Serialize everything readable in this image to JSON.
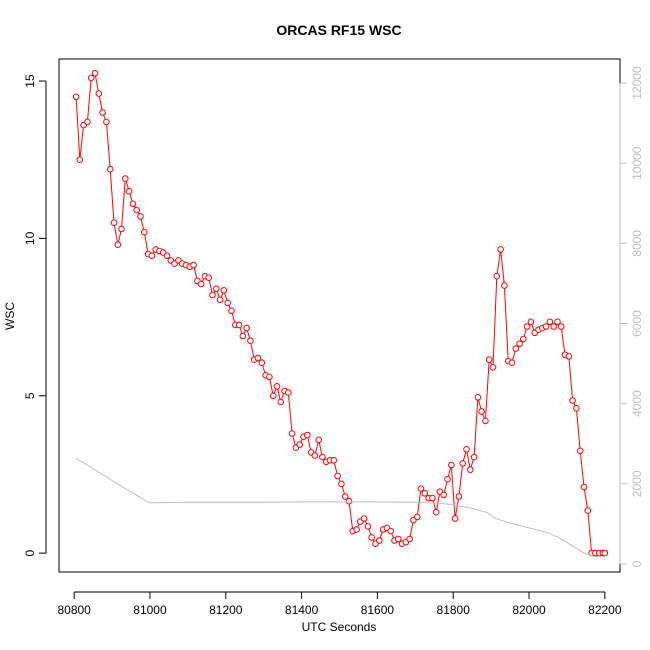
{
  "chart_data": {
    "type": "line",
    "title": "ORCAS RF15 WSC",
    "xlabel": "UTC Seconds",
    "ylabel": "WSC",
    "xlim": [
      80760,
      82240
    ],
    "ylim": [
      -0.6,
      15.7
    ],
    "y2lim": [
      -200,
      12600
    ],
    "x_ticks": [
      80800,
      81000,
      81200,
      81400,
      81600,
      81800,
      82000,
      82200
    ],
    "x_tick_labels": [
      "80800",
      "81000",
      "81200",
      "81400",
      "81600",
      "81800",
      "82000",
      "82200"
    ],
    "y_ticks": [
      0,
      5,
      10,
      15
    ],
    "y_tick_labels": [
      "0",
      "5",
      "10",
      "15"
    ],
    "y2_ticks": [
      0,
      2000,
      4000,
      6000,
      8000,
      10000,
      12000
    ],
    "y2_tick_labels": [
      "0",
      "2000",
      "4000",
      "6000",
      "8000",
      "10000",
      "12000"
    ],
    "grid": false,
    "colors": {
      "wsc": "#ff0000",
      "secondary": "#bebebe",
      "axis": "#000000",
      "axis2": "#bebebe"
    },
    "series": [
      {
        "axis": "left",
        "style": "line+markers",
        "points": [
          [
            80805,
            14.5
          ],
          [
            80815,
            12.5
          ],
          [
            80825,
            13.6
          ],
          [
            80835,
            13.7
          ],
          [
            80845,
            15.1
          ],
          [
            80855,
            15.25
          ],
          [
            80865,
            14.6
          ],
          [
            80875,
            14.0
          ],
          [
            80885,
            13.7
          ],
          [
            80895,
            12.2
          ],
          [
            80905,
            10.5
          ],
          [
            80915,
            9.8
          ],
          [
            80925,
            10.3
          ],
          [
            80935,
            11.9
          ],
          [
            80945,
            11.5
          ],
          [
            80955,
            11.1
          ],
          [
            80965,
            10.9
          ],
          [
            80975,
            10.7
          ],
          [
            80985,
            10.2
          ],
          [
            80995,
            9.5
          ],
          [
            81005,
            9.45
          ],
          [
            81015,
            9.65
          ],
          [
            81025,
            9.6
          ],
          [
            81035,
            9.55
          ],
          [
            81045,
            9.45
          ],
          [
            81055,
            9.3
          ],
          [
            81065,
            9.2
          ],
          [
            81075,
            9.3
          ],
          [
            81085,
            9.2
          ],
          [
            81095,
            9.15
          ],
          [
            81105,
            9.1
          ],
          [
            81115,
            9.15
          ],
          [
            81125,
            8.65
          ],
          [
            81135,
            8.55
          ],
          [
            81145,
            8.8
          ],
          [
            81155,
            8.75
          ],
          [
            81165,
            8.2
          ],
          [
            81175,
            8.4
          ],
          [
            81185,
            8.05
          ],
          [
            81195,
            8.35
          ],
          [
            81205,
            7.95
          ],
          [
            81215,
            7.7
          ],
          [
            81225,
            7.25
          ],
          [
            81235,
            7.25
          ],
          [
            81245,
            6.9
          ],
          [
            81255,
            7.15
          ],
          [
            81265,
            6.75
          ],
          [
            81275,
            6.15
          ],
          [
            81285,
            6.2
          ],
          [
            81295,
            6.05
          ],
          [
            81305,
            5.65
          ],
          [
            81315,
            5.6
          ],
          [
            81325,
            5.0
          ],
          [
            81335,
            5.3
          ],
          [
            81345,
            4.8
          ],
          [
            81355,
            5.15
          ],
          [
            81365,
            5.1
          ],
          [
            81375,
            3.8
          ],
          [
            81385,
            3.35
          ],
          [
            81395,
            3.45
          ],
          [
            81405,
            3.7
          ],
          [
            81415,
            3.75
          ],
          [
            81425,
            3.2
          ],
          [
            81435,
            3.1
          ],
          [
            81445,
            3.6
          ],
          [
            81455,
            3.05
          ],
          [
            81465,
            2.9
          ],
          [
            81475,
            2.95
          ],
          [
            81485,
            2.95
          ],
          [
            81495,
            2.45
          ],
          [
            81505,
            2.2
          ],
          [
            81515,
            1.8
          ],
          [
            81525,
            1.65
          ],
          [
            81535,
            0.7
          ],
          [
            81545,
            0.75
          ],
          [
            81555,
            1.0
          ],
          [
            81565,
            1.1
          ],
          [
            81575,
            0.85
          ],
          [
            81585,
            0.5
          ],
          [
            81595,
            0.3
          ],
          [
            81605,
            0.4
          ],
          [
            81615,
            0.75
          ],
          [
            81625,
            0.8
          ],
          [
            81635,
            0.7
          ],
          [
            81645,
            0.4
          ],
          [
            81655,
            0.45
          ],
          [
            81665,
            0.3
          ],
          [
            81675,
            0.35
          ],
          [
            81685,
            0.45
          ],
          [
            81695,
            1.05
          ],
          [
            81705,
            1.15
          ],
          [
            81715,
            2.05
          ],
          [
            81725,
            1.9
          ],
          [
            81735,
            1.75
          ],
          [
            81745,
            1.75
          ],
          [
            81755,
            1.3
          ],
          [
            81765,
            1.95
          ],
          [
            81775,
            1.85
          ],
          [
            81785,
            2.35
          ],
          [
            81795,
            2.8
          ],
          [
            81805,
            1.1
          ],
          [
            81815,
            1.8
          ],
          [
            81825,
            2.85
          ],
          [
            81835,
            3.3
          ],
          [
            81845,
            2.65
          ],
          [
            81855,
            3.05
          ],
          [
            81865,
            4.95
          ],
          [
            81875,
            4.5
          ],
          [
            81885,
            4.2
          ],
          [
            81895,
            6.15
          ],
          [
            81905,
            5.9
          ],
          [
            81915,
            8.8
          ],
          [
            81925,
            9.65
          ],
          [
            81935,
            8.5
          ],
          [
            81945,
            6.1
          ],
          [
            81955,
            6.05
          ],
          [
            81965,
            6.5
          ],
          [
            81975,
            6.65
          ],
          [
            81985,
            6.8
          ],
          [
            81995,
            7.2
          ],
          [
            82005,
            7.35
          ],
          [
            82015,
            7.0
          ],
          [
            82025,
            7.1
          ],
          [
            82035,
            7.15
          ],
          [
            82045,
            7.2
          ],
          [
            82055,
            7.35
          ],
          [
            82065,
            7.2
          ],
          [
            82075,
            7.35
          ],
          [
            82085,
            7.2
          ],
          [
            82095,
            6.3
          ],
          [
            82105,
            6.25
          ],
          [
            82115,
            4.85
          ],
          [
            82125,
            4.6
          ],
          [
            82135,
            3.25
          ],
          [
            82145,
            2.1
          ],
          [
            82155,
            1.35
          ],
          [
            82165,
            0.0
          ],
          [
            82175,
            0.0
          ],
          [
            82185,
            0.0
          ],
          [
            82195,
            0.0
          ],
          [
            82200,
            0.0
          ]
        ]
      },
      {
        "axis": "right",
        "style": "line",
        "points": [
          [
            80805,
            2630
          ],
          [
            80850,
            2380
          ],
          [
            80900,
            2080
          ],
          [
            80950,
            1800
          ],
          [
            80990,
            1570
          ],
          [
            81000,
            1530
          ],
          [
            81020,
            1530
          ],
          [
            81100,
            1540
          ],
          [
            81200,
            1540
          ],
          [
            81300,
            1540
          ],
          [
            81400,
            1550
          ],
          [
            81500,
            1550
          ],
          [
            81600,
            1550
          ],
          [
            81700,
            1540
          ],
          [
            81760,
            1520
          ],
          [
            81800,
            1480
          ],
          [
            81850,
            1390
          ],
          [
            81890,
            1280
          ],
          [
            81910,
            1140
          ],
          [
            81950,
            1020
          ],
          [
            82000,
            900
          ],
          [
            82050,
            780
          ],
          [
            82080,
            650
          ],
          [
            82120,
            420
          ],
          [
            82150,
            250
          ],
          [
            82170,
            190
          ],
          [
            82200,
            180
          ]
        ]
      }
    ]
  }
}
